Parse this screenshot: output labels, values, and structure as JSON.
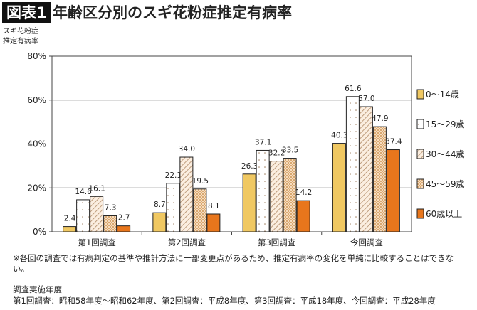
{
  "header": {
    "badge": "図表1",
    "title": "年齢区分別のスギ花粉症推定有病率"
  },
  "chart_data": {
    "type": "bar",
    "title": "年齢区分別のスギ花粉症推定有病率",
    "ylabel": "スギ花粉症\n推定有病率",
    "ylabel_lines": [
      "スギ花粉症",
      "推定有病率"
    ],
    "ylim": [
      0,
      80
    ],
    "yticks": [
      "0%",
      "20%",
      "40%",
      "60%",
      "80%"
    ],
    "grid": true,
    "legend_position": "right",
    "categories": [
      "第1回調査",
      "第2回調査",
      "第3回調査",
      "今回調査"
    ],
    "series": [
      {
        "name": "0〜14歳",
        "values": [
          2.4,
          8.7,
          26.3,
          40.3
        ],
        "color": "#f0c862",
        "pattern": "solid"
      },
      {
        "name": "15〜29歳",
        "values": [
          14.6,
          22.1,
          37.1,
          61.6
        ],
        "color": "#ffffff",
        "pattern": "dots"
      },
      {
        "name": "30〜44歳",
        "values": [
          16.1,
          34.0,
          32.2,
          57.0
        ],
        "color": "#fbeee0",
        "pattern": "hatch"
      },
      {
        "name": "45〜59歳",
        "values": [
          7.3,
          19.5,
          33.5,
          47.9
        ],
        "color": "#e9c490",
        "pattern": "check"
      },
      {
        "name": "60歳以上",
        "values": [
          2.7,
          8.1,
          14.2,
          37.4
        ],
        "color": "#e8761c",
        "pattern": "solid"
      }
    ]
  },
  "notes": {
    "caveat": "※各回の調査では有病判定の基準や推計方法に一部変更点があるため、推定有病率の変化を単純に比較することはできない。",
    "years_heading": "調査実施年度",
    "years": "第1回調査：昭和58年度〜昭和62年度、第2回調査：平成8年度、第3回調査：平成18年度、今回調査：平成28年度"
  }
}
